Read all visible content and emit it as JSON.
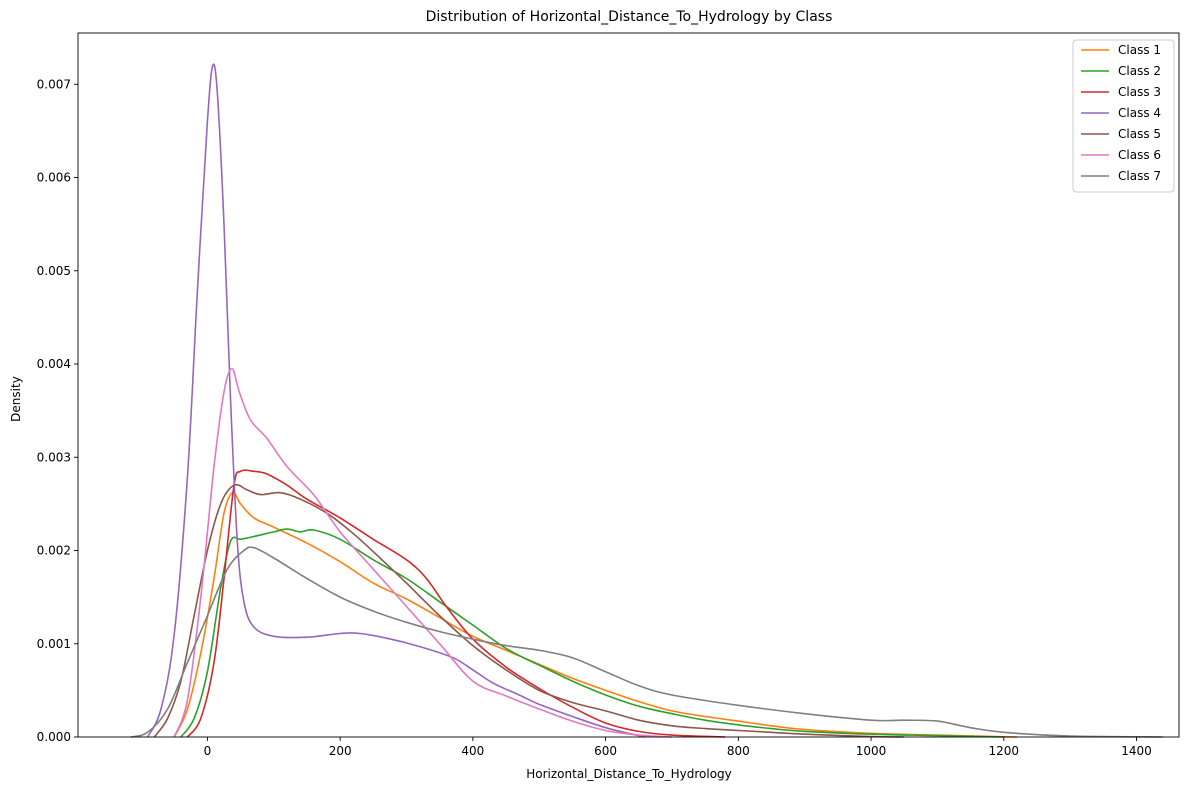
{
  "chart_data": {
    "type": "line",
    "title": "Distribution of Horizontal_Distance_To_Hydrology by Class",
    "xlabel": "Horizontal_Distance_To_Hydrology",
    "ylabel": "Density",
    "xlim": [
      -195,
      1464
    ],
    "ylim": [
      0,
      0.00755
    ],
    "xticks": [
      0,
      200,
      400,
      600,
      800,
      1000,
      1200,
      1400
    ],
    "xtick_labels": [
      "0",
      "200",
      "400",
      "600",
      "800",
      "1000",
      "1200",
      "1400"
    ],
    "yticks": [
      0,
      0.001,
      0.002,
      0.003,
      0.004,
      0.005,
      0.006,
      0.007
    ],
    "ytick_labels": [
      "0.000",
      "0.001",
      "0.002",
      "0.003",
      "0.004",
      "0.005",
      "0.006",
      "0.007"
    ],
    "grid": false,
    "legend_position": "top-right",
    "series": [
      {
        "name": "Class 1",
        "color": "#ff7f0e",
        "points": [
          [
            -50,
            0
          ],
          [
            -30,
            0.0003
          ],
          [
            -10,
            0.0009
          ],
          [
            10,
            0.0017
          ],
          [
            25,
            0.0024
          ],
          [
            38,
            0.00262
          ],
          [
            50,
            0.0025
          ],
          [
            70,
            0.00235
          ],
          [
            100,
            0.00225
          ],
          [
            150,
            0.00208
          ],
          [
            200,
            0.00188
          ],
          [
            250,
            0.00165
          ],
          [
            300,
            0.00148
          ],
          [
            350,
            0.00128
          ],
          [
            400,
            0.00108
          ],
          [
            450,
            0.00093
          ],
          [
            500,
            0.00078
          ],
          [
            550,
            0.00063
          ],
          [
            600,
            0.0005
          ],
          [
            650,
            0.00038
          ],
          [
            700,
            0.00028
          ],
          [
            750,
            0.00022
          ],
          [
            800,
            0.00017
          ],
          [
            850,
            0.00012
          ],
          [
            900,
            8e-05
          ],
          [
            1000,
            4e-05
          ],
          [
            1100,
            2e-05
          ],
          [
            1220,
            0
          ]
        ]
      },
      {
        "name": "Class 2",
        "color": "#2ca02c",
        "points": [
          [
            -40,
            0
          ],
          [
            -20,
            0.0002
          ],
          [
            0,
            0.0007
          ],
          [
            20,
            0.0016
          ],
          [
            35,
            0.0021
          ],
          [
            50,
            0.00212
          ],
          [
            70,
            0.00215
          ],
          [
            100,
            0.0022
          ],
          [
            120,
            0.00223
          ],
          [
            140,
            0.0022
          ],
          [
            160,
            0.00222
          ],
          [
            200,
            0.00212
          ],
          [
            250,
            0.0019
          ],
          [
            300,
            0.0017
          ],
          [
            350,
            0.00145
          ],
          [
            400,
            0.0012
          ],
          [
            450,
            0.00095
          ],
          [
            500,
            0.00077
          ],
          [
            550,
            0.0006
          ],
          [
            600,
            0.00045
          ],
          [
            650,
            0.00033
          ],
          [
            700,
            0.00025
          ],
          [
            750,
            0.00018
          ],
          [
            800,
            0.00013
          ],
          [
            850,
            9e-05
          ],
          [
            900,
            6e-05
          ],
          [
            1000,
            3e-05
          ],
          [
            1100,
            1.5e-05
          ],
          [
            1200,
            0
          ]
        ]
      },
      {
        "name": "Class 3",
        "color": "#d62728",
        "points": [
          [
            -30,
            0
          ],
          [
            -10,
            0.0002
          ],
          [
            10,
            0.0008
          ],
          [
            25,
            0.0017
          ],
          [
            40,
            0.0027
          ],
          [
            50,
            0.00285
          ],
          [
            70,
            0.00285
          ],
          [
            90,
            0.00282
          ],
          [
            120,
            0.0027
          ],
          [
            150,
            0.00255
          ],
          [
            200,
            0.00235
          ],
          [
            250,
            0.00212
          ],
          [
            300,
            0.0019
          ],
          [
            330,
            0.0017
          ],
          [
            360,
            0.0014
          ],
          [
            400,
            0.00105
          ],
          [
            450,
            0.00075
          ],
          [
            500,
            0.00052
          ],
          [
            550,
            0.00032
          ],
          [
            600,
            0.00015
          ],
          [
            650,
            6e-05
          ],
          [
            700,
            2e-05
          ],
          [
            780,
            0
          ]
        ]
      },
      {
        "name": "Class 4",
        "color": "#9467bd",
        "points": [
          [
            -90,
            0
          ],
          [
            -70,
            0.0003
          ],
          [
            -50,
            0.0011
          ],
          [
            -30,
            0.0028
          ],
          [
            -15,
            0.0048
          ],
          [
            0,
            0.0066
          ],
          [
            8,
            0.0072
          ],
          [
            15,
            0.0069
          ],
          [
            25,
            0.0055
          ],
          [
            35,
            0.0036
          ],
          [
            45,
            0.0021
          ],
          [
            55,
            0.00145
          ],
          [
            70,
            0.00118
          ],
          [
            100,
            0.00108
          ],
          [
            150,
            0.00107
          ],
          [
            200,
            0.00111
          ],
          [
            230,
            0.00111
          ],
          [
            270,
            0.00106
          ],
          [
            320,
            0.00097
          ],
          [
            370,
            0.00085
          ],
          [
            400,
            0.00072
          ],
          [
            430,
            0.00058
          ],
          [
            470,
            0.00045
          ],
          [
            500,
            0.00035
          ],
          [
            550,
            0.00022
          ],
          [
            600,
            0.0001
          ],
          [
            640,
            3e-05
          ],
          [
            660,
            0
          ]
        ]
      },
      {
        "name": "Class 5",
        "color": "#8c564b",
        "points": [
          [
            -80,
            0
          ],
          [
            -60,
            0.0002
          ],
          [
            -40,
            0.0006
          ],
          [
            -20,
            0.0013
          ],
          [
            0,
            0.002
          ],
          [
            20,
            0.0025
          ],
          [
            40,
            0.0027
          ],
          [
            60,
            0.00265
          ],
          [
            80,
            0.0026
          ],
          [
            110,
            0.00262
          ],
          [
            140,
            0.00255
          ],
          [
            180,
            0.0024
          ],
          [
            220,
            0.00218
          ],
          [
            260,
            0.00192
          ],
          [
            300,
            0.00165
          ],
          [
            350,
            0.0013
          ],
          [
            400,
            0.00098
          ],
          [
            450,
            0.00072
          ],
          [
            500,
            0.0005
          ],
          [
            550,
            0.00037
          ],
          [
            600,
            0.00028
          ],
          [
            650,
            0.00018
          ],
          [
            700,
            0.00012
          ],
          [
            750,
            9e-05
          ],
          [
            800,
            7e-05
          ],
          [
            850,
            5e-05
          ],
          [
            900,
            3e-05
          ],
          [
            1000,
            5e-06
          ],
          [
            1050,
            0
          ]
        ]
      },
      {
        "name": "Class 6",
        "color": "#e377c2",
        "points": [
          [
            -50,
            0
          ],
          [
            -30,
            0.0004
          ],
          [
            -10,
            0.0015
          ],
          [
            10,
            0.0029
          ],
          [
            25,
            0.0037
          ],
          [
            37,
            0.00395
          ],
          [
            48,
            0.0037
          ],
          [
            65,
            0.0034
          ],
          [
            90,
            0.0032
          ],
          [
            120,
            0.0029
          ],
          [
            160,
            0.0026
          ],
          [
            200,
            0.0022
          ],
          [
            250,
            0.0018
          ],
          [
            300,
            0.0014
          ],
          [
            350,
            0.001
          ],
          [
            400,
            0.0006
          ],
          [
            450,
            0.00044
          ],
          [
            500,
            0.0003
          ],
          [
            550,
            0.00017
          ],
          [
            600,
            7e-05
          ],
          [
            650,
            2e-05
          ],
          [
            700,
            0
          ]
        ]
      },
      {
        "name": "Class 7",
        "color": "#7f7f7f",
        "points": [
          [
            -115,
            0
          ],
          [
            -90,
            5e-05
          ],
          [
            -60,
            0.0003
          ],
          [
            -30,
            0.0008
          ],
          [
            0,
            0.0013
          ],
          [
            30,
            0.0018
          ],
          [
            55,
            0.002
          ],
          [
            70,
            0.00203
          ],
          [
            100,
            0.00192
          ],
          [
            150,
            0.0017
          ],
          [
            200,
            0.0015
          ],
          [
            250,
            0.00135
          ],
          [
            300,
            0.00123
          ],
          [
            350,
            0.00113
          ],
          [
            400,
            0.00105
          ],
          [
            450,
            0.00098
          ],
          [
            500,
            0.00093
          ],
          [
            550,
            0.00085
          ],
          [
            600,
            0.0007
          ],
          [
            650,
            0.00055
          ],
          [
            700,
            0.00045
          ],
          [
            800,
            0.00034
          ],
          [
            900,
            0.00025
          ],
          [
            1000,
            0.00018
          ],
          [
            1050,
            0.00018
          ],
          [
            1100,
            0.00017
          ],
          [
            1150,
            0.0001
          ],
          [
            1200,
            5e-05
          ],
          [
            1300,
            1e-05
          ],
          [
            1440,
            0
          ]
        ]
      }
    ]
  }
}
